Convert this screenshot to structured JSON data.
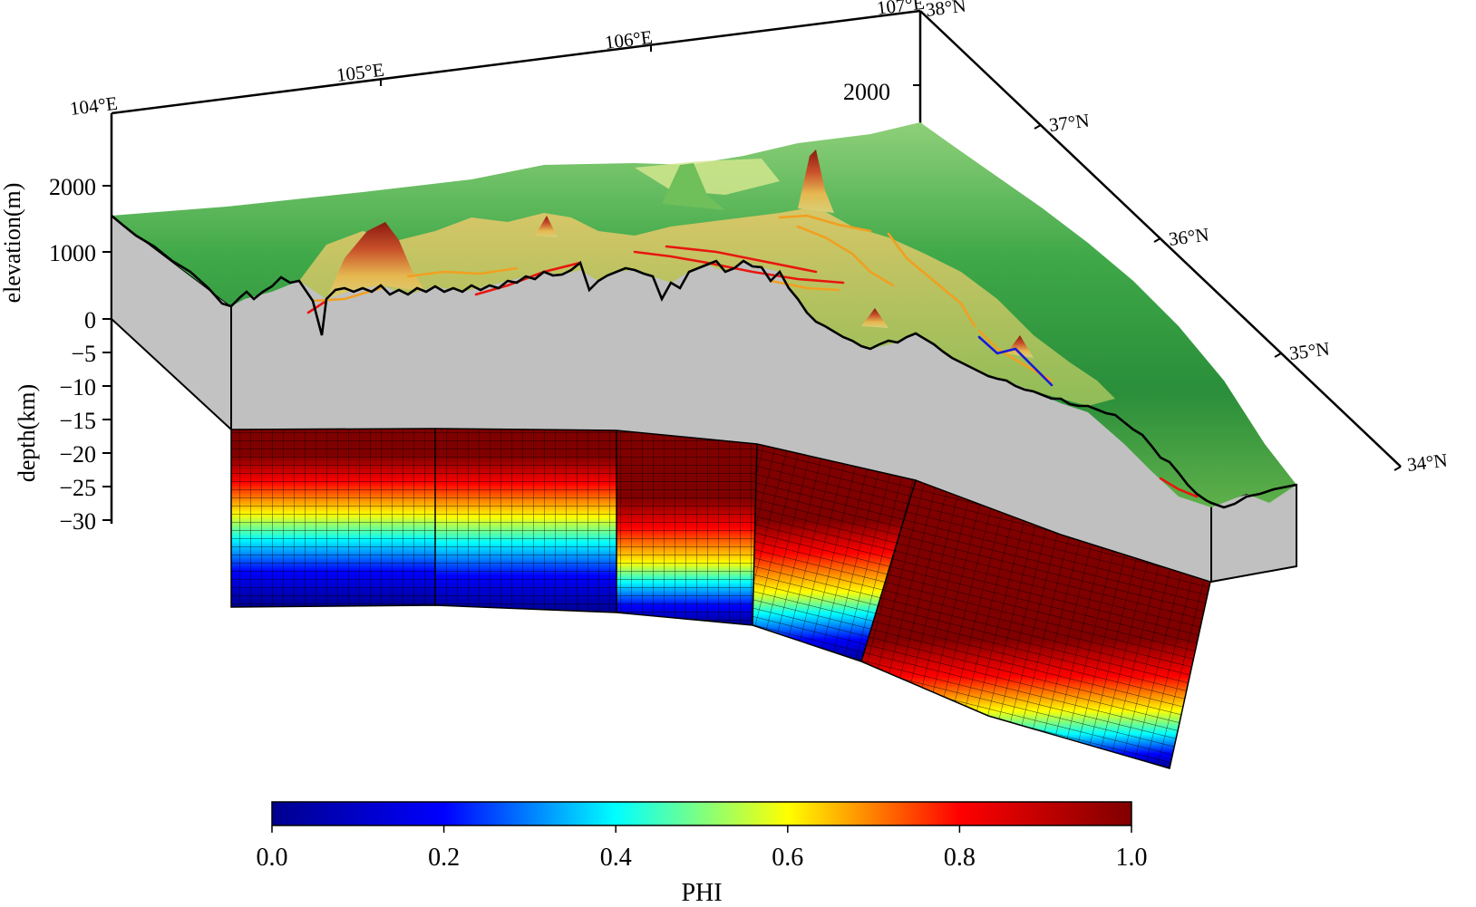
{
  "lon_labels": [
    "104°E",
    "105°E",
    "106°E",
    "107°E"
  ],
  "lat_labels": [
    "38°N",
    "37°N",
    "36°N",
    "35°N",
    "34°N"
  ],
  "top_elevation_tick": "2000",
  "elevation_axis": {
    "label": "elevation(m)",
    "ticks": [
      "2000",
      "1000",
      "0"
    ]
  },
  "depth_axis": {
    "label": "depth(km)",
    "ticks": [
      "−5",
      "−10",
      "−15",
      "−20",
      "−25",
      "−30"
    ]
  },
  "colorbar": {
    "label": "PHI",
    "ticks": [
      "0.0",
      "0.2",
      "0.4",
      "0.6",
      "0.8",
      "1.0"
    ],
    "range": [
      0.0,
      1.0
    ],
    "colormap": [
      "#00008f",
      "#0000ff",
      "#00ffff",
      "#ffff00",
      "#ff0000",
      "#800000"
    ]
  },
  "colors": {
    "crust_gray": "#c0c0c0",
    "terrain_green": "#2f9e3f",
    "fault_red": "#e8160f",
    "fault_orange": "#f0a020",
    "fault_blue": "#1a1ad8"
  }
}
